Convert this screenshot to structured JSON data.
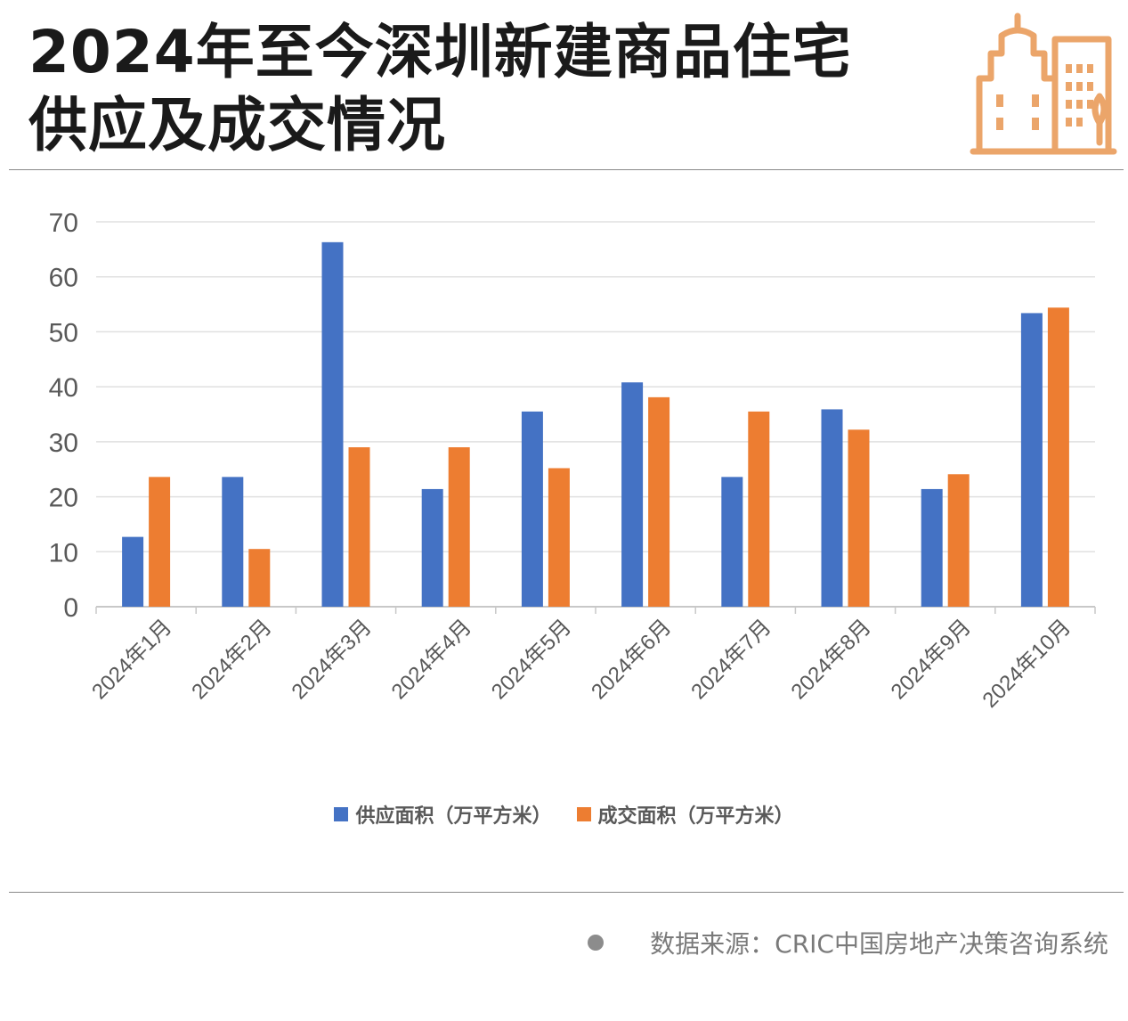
{
  "header": {
    "title_line1": "2024年至今深圳新建商品住宅",
    "title_line2": "供应及成交情况"
  },
  "icon": "building-skyline-icon",
  "colors": {
    "supply": "#4472C4",
    "deal": "#ED7D31",
    "icon": "#EBA56A"
  },
  "chart_data": {
    "type": "bar",
    "categories": [
      "2024年1月",
      "2024年2月",
      "2024年3月",
      "2024年4月",
      "2024年5月",
      "2024年6月",
      "2024年7月",
      "2024年8月",
      "2024年9月",
      "2024年10月"
    ],
    "series": [
      {
        "name": "供应面积（万平方米）",
        "values": [
          12.7,
          23.6,
          66.3,
          21.4,
          35.5,
          40.8,
          23.6,
          35.9,
          21.4,
          53.4
        ]
      },
      {
        "name": "成交面积（万平方米）",
        "values": [
          23.6,
          10.5,
          29.0,
          29.0,
          25.2,
          38.1,
          35.5,
          32.2,
          24.1,
          54.4
        ]
      }
    ],
    "yticks": [
      "0",
      "10",
      "20",
      "30",
      "40",
      "50",
      "60",
      "70"
    ],
    "ylim": [
      0,
      70
    ],
    "grid": true,
    "legend_position": "bottom"
  },
  "legend": {
    "supply_label": "供应面积（万平方米）",
    "deal_label": "成交面积（万平方米）"
  },
  "footer": {
    "source": "数据来源：CRIC中国房地产决策咨询系统"
  }
}
